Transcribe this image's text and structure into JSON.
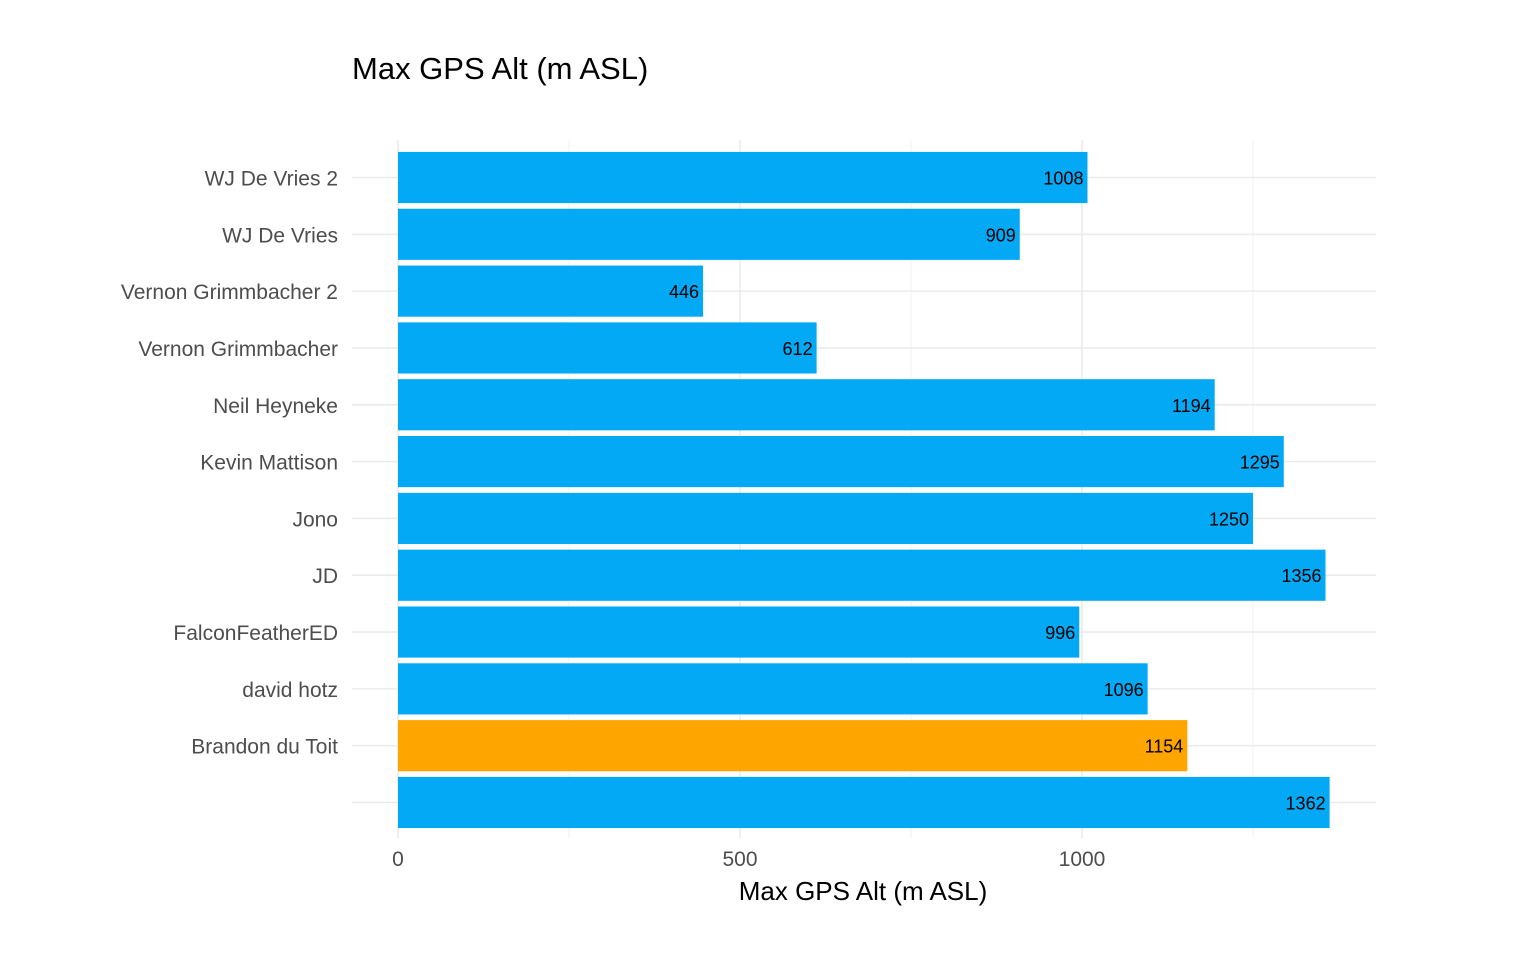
{
  "chart_data": {
    "type": "bar",
    "orientation": "horizontal",
    "title": "Max GPS Alt (m ASL)",
    "xlabel": "Max GPS Alt (m ASL)",
    "ylabel": "",
    "xlim": [
      0,
      1430
    ],
    "x_ticks": [
      "0",
      "500",
      "1000"
    ],
    "x_tick_values": [
      0,
      500,
      1000
    ],
    "grid": true,
    "legend": "none",
    "categories": [
      "WJ De Vries 2",
      "WJ De Vries",
      "Vernon Grimmbacher 2",
      "Vernon Grimmbacher",
      "Neil Heyneke",
      "Kevin Mattison",
      "Jono",
      "JD",
      "FalconFeatherED",
      "david hotz",
      "Brandon du Toit",
      ""
    ],
    "values": [
      1008,
      909,
      446,
      612,
      1194,
      1295,
      1250,
      1356,
      996,
      1096,
      1154,
      1362
    ],
    "data_labels": [
      "1008",
      "909",
      "446",
      "612",
      "1194",
      "1295",
      "1250",
      "1356",
      "996",
      "1096",
      "1154",
      "1362"
    ],
    "highlighted": [
      false,
      false,
      false,
      false,
      false,
      false,
      false,
      false,
      false,
      false,
      true,
      false
    ],
    "colors": {
      "default": "#03A9F4",
      "highlight": "#FFA500",
      "grid": "#EBEBEB",
      "tick_text": "#4D4D4D"
    }
  }
}
